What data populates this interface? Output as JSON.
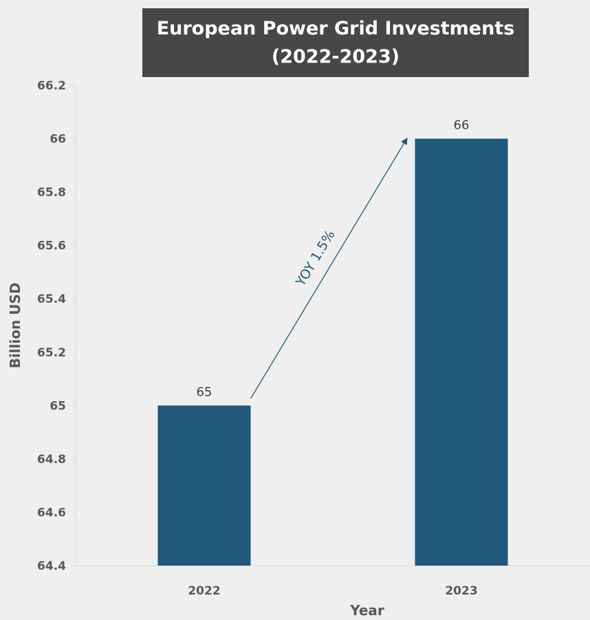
{
  "chart_data": {
    "type": "bar",
    "title": "European Power Grid Investments\n(2022-2023)",
    "categories": [
      "2022",
      "2023"
    ],
    "values": [
      65,
      66
    ],
    "xlabel": "Year",
    "ylabel": "Billion USD",
    "ylim": [
      64.4,
      66.2
    ],
    "yticks": [
      "64.4",
      "64.6",
      "64.8",
      "65",
      "65.2",
      "65.4",
      "65.6",
      "65.8",
      "66",
      "66.2"
    ],
    "data_labels": [
      "65",
      "66"
    ],
    "grid": false,
    "legend": "none",
    "annotation": "YOY 1.5%",
    "colors": {
      "bar": "#1f5879",
      "arrow": "#1f5879",
      "title_bg": "#474747",
      "background": "#efefef"
    }
  }
}
